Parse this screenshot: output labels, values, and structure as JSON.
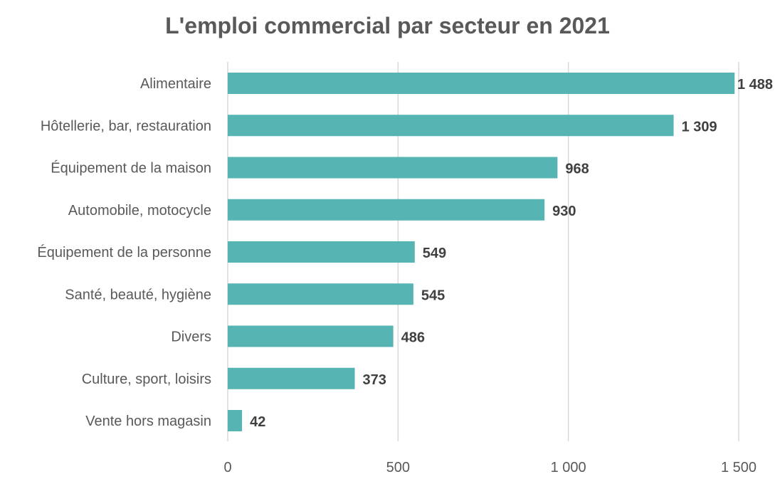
{
  "chart_data": {
    "type": "bar",
    "orientation": "horizontal",
    "title": "L'emploi commercial par secteur en 2021",
    "xlabel": "",
    "ylabel": "",
    "categories": [
      "Alimentaire",
      "Hôtellerie, bar, restauration",
      "Équipement de la maison",
      "Automobile, motocycle",
      "Équipement de la personne",
      "Santé, beauté, hygiène",
      "Divers",
      "Culture, sport, loisirs",
      "Vente hors magasin"
    ],
    "values": [
      1488,
      1309,
      968,
      930,
      549,
      545,
      486,
      373,
      42
    ],
    "value_labels": [
      "1 488",
      "1 309",
      "968",
      "930",
      "549",
      "545",
      "486",
      "373",
      "42"
    ],
    "xlim": [
      0,
      1500
    ],
    "xticks": [
      0,
      500,
      1000,
      1500
    ],
    "xtick_labels": [
      "0",
      "500",
      "1 000",
      "1 500"
    ],
    "grid": true,
    "legend": "none",
    "bar_color": "#56B4B3"
  }
}
